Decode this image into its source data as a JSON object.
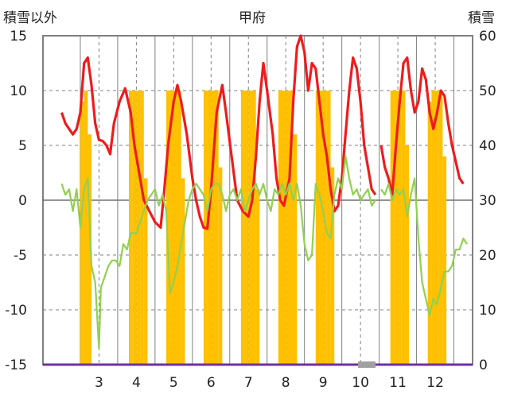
{
  "chart_data": {
    "type": "bar+line",
    "title": "甲府",
    "left_axis_label": "積雪以外",
    "right_axis_label": "積雪",
    "x_ticks": [
      "3",
      "4",
      "5",
      "6",
      "7",
      "8",
      "9",
      "10",
      "11",
      "12"
    ],
    "y_left": {
      "ticks": [
        "15",
        "10",
        "5",
        "0",
        "-5",
        "-10",
        "-15"
      ],
      "range": [
        -15,
        15
      ]
    },
    "y_right": {
      "ticks": [
        "60",
        "50",
        "40",
        "30",
        "20",
        "10",
        "0"
      ],
      "range": [
        0,
        60
      ]
    },
    "grid": "dashed",
    "colors": {
      "red": "#ee1c1c",
      "green": "#92d050",
      "snow_bars": "#ffc000",
      "baseline": "#7030a0"
    },
    "series": [
      {
        "axis": "right",
        "style": "bars",
        "color": "#ffc000",
        "points": [
          [
            2.55,
            48
          ],
          [
            2.65,
            50
          ],
          [
            2.75,
            42
          ],
          [
            3.85,
            50
          ],
          [
            3.95,
            50
          ],
          [
            4.05,
            50
          ],
          [
            4.15,
            50
          ],
          [
            4.25,
            34
          ],
          [
            4.85,
            50
          ],
          [
            4.95,
            50
          ],
          [
            5.05,
            50
          ],
          [
            5.15,
            50
          ],
          [
            5.25,
            34
          ],
          [
            5.85,
            50
          ],
          [
            5.95,
            50
          ],
          [
            6.05,
            50
          ],
          [
            6.15,
            50
          ],
          [
            6.25,
            36
          ],
          [
            6.85,
            50
          ],
          [
            6.95,
            50
          ],
          [
            7.05,
            50
          ],
          [
            7.15,
            50
          ],
          [
            7.25,
            32
          ],
          [
            7.85,
            50
          ],
          [
            7.95,
            50
          ],
          [
            8.05,
            50
          ],
          [
            8.15,
            50
          ],
          [
            8.25,
            42
          ],
          [
            8.85,
            50
          ],
          [
            8.95,
            50
          ],
          [
            9.05,
            50
          ],
          [
            9.15,
            50
          ],
          [
            9.25,
            36
          ],
          [
            10.85,
            50
          ],
          [
            10.95,
            50
          ],
          [
            11.05,
            50
          ],
          [
            11.15,
            50
          ],
          [
            11.25,
            40
          ],
          [
            11.85,
            48
          ],
          [
            11.95,
            50
          ],
          [
            12.05,
            50
          ],
          [
            12.15,
            50
          ],
          [
            12.25,
            38
          ]
        ]
      },
      {
        "axis": "left",
        "style": "line",
        "color": "#ee1c1c",
        "segments": [
          [
            [
              2.0,
              8
            ],
            [
              2.1,
              7
            ],
            [
              2.2,
              6.5
            ],
            [
              2.3,
              6
            ],
            [
              2.4,
              6.5
            ],
            [
              2.5,
              8
            ],
            [
              2.6,
              12.5
            ],
            [
              2.7,
              13
            ],
            [
              2.8,
              10.5
            ],
            [
              2.9,
              7
            ],
            [
              3.0,
              5.5
            ],
            [
              3.1,
              5.4
            ],
            [
              3.2,
              5
            ],
            [
              3.3,
              4.2
            ],
            [
              3.4,
              7
            ],
            [
              3.55,
              9
            ],
            [
              3.7,
              10.2
            ],
            [
              3.85,
              8
            ],
            [
              3.95,
              5
            ],
            [
              4.1,
              2
            ],
            [
              4.2,
              0
            ],
            [
              4.35,
              -1
            ],
            [
              4.5,
              -2
            ],
            [
              4.65,
              -2.5
            ],
            [
              4.75,
              1
            ],
            [
              4.85,
              5
            ],
            [
              5.0,
              9
            ],
            [
              5.1,
              10.5
            ],
            [
              5.2,
              9
            ],
            [
              5.35,
              6
            ],
            [
              5.5,
              2
            ],
            [
              5.6,
              0
            ],
            [
              5.7,
              -1.5
            ],
            [
              5.8,
              -2.5
            ],
            [
              5.9,
              -2.6
            ],
            [
              6.0,
              1
            ],
            [
              6.15,
              8
            ],
            [
              6.3,
              10.5
            ],
            [
              6.4,
              8
            ],
            [
              6.55,
              4
            ],
            [
              6.7,
              0
            ],
            [
              6.85,
              -1
            ],
            [
              7.0,
              -1.5
            ],
            [
              7.1,
              0
            ],
            [
              7.2,
              4
            ],
            [
              7.3,
              9
            ],
            [
              7.4,
              12.5
            ],
            [
              7.5,
              10
            ],
            [
              7.65,
              6
            ],
            [
              7.75,
              2
            ],
            [
              7.85,
              0
            ],
            [
              7.95,
              -0.5
            ],
            [
              8.1,
              2
            ],
            [
              8.2,
              9
            ],
            [
              8.3,
              14
            ],
            [
              8.4,
              15
            ],
            [
              8.5,
              13.5
            ],
            [
              8.6,
              10
            ],
            [
              8.7,
              12.5
            ],
            [
              8.8,
              12
            ],
            [
              8.9,
              9
            ],
            [
              9.0,
              6
            ],
            [
              9.1,
              4
            ],
            [
              9.2,
              1
            ],
            [
              9.3,
              -1
            ],
            [
              9.4,
              -0.5
            ],
            [
              9.5,
              2
            ],
            [
              9.6,
              6
            ],
            [
              9.7,
              10
            ],
            [
              9.8,
              13
            ],
            [
              9.9,
              12
            ],
            [
              10.0,
              9
            ],
            [
              10.1,
              5
            ],
            [
              10.2,
              3
            ],
            [
              10.3,
              1
            ],
            [
              10.4,
              0.5
            ]
          ],
          [
            [
              10.55,
              5
            ],
            [
              10.65,
              3
            ],
            [
              10.75,
              2
            ],
            [
              10.85,
              0.5
            ],
            [
              10.95,
              5
            ],
            [
              11.05,
              9
            ],
            [
              11.15,
              12.5
            ],
            [
              11.25,
              13
            ],
            [
              11.35,
              10
            ],
            [
              11.45,
              8
            ],
            [
              11.55,
              9
            ],
            [
              11.65,
              12
            ],
            [
              11.75,
              11
            ],
            [
              11.85,
              8
            ],
            [
              11.95,
              6.5
            ],
            [
              12.05,
              8
            ],
            [
              12.15,
              10
            ],
            [
              12.25,
              9.5
            ],
            [
              12.35,
              7
            ],
            [
              12.45,
              5
            ],
            [
              12.55,
              3.5
            ],
            [
              12.65,
              2
            ],
            [
              12.75,
              1.5
            ]
          ]
        ]
      },
      {
        "axis": "left",
        "style": "line",
        "color": "#92d050",
        "segments": [
          [
            [
              2.0,
              1.5
            ],
            [
              2.1,
              0.5
            ],
            [
              2.2,
              1
            ],
            [
              2.3,
              -1
            ],
            [
              2.4,
              1
            ],
            [
              2.5,
              -2.5
            ],
            [
              2.6,
              1
            ],
            [
              2.7,
              2
            ],
            [
              2.8,
              -6
            ],
            [
              2.9,
              -7.5
            ],
            [
              3.0,
              -13.5
            ],
            [
              3.05,
              -8
            ],
            [
              3.15,
              -7
            ],
            [
              3.25,
              -6
            ],
            [
              3.35,
              -5.5
            ],
            [
              3.45,
              -5.5
            ],
            [
              3.55,
              -6
            ],
            [
              3.65,
              -4
            ],
            [
              3.75,
              -4.5
            ],
            [
              3.85,
              -3
            ],
            [
              4.0,
              -3
            ],
            [
              4.1,
              -2
            ],
            [
              4.2,
              -1
            ],
            [
              4.3,
              0
            ],
            [
              4.4,
              0.5
            ],
            [
              4.5,
              1
            ],
            [
              4.6,
              -0.5
            ],
            [
              4.7,
              0.5
            ],
            [
              4.8,
              -1
            ],
            [
              4.9,
              -8.5
            ],
            [
              5.0,
              -7.5
            ],
            [
              5.1,
              -6
            ],
            [
              5.2,
              -4
            ],
            [
              5.3,
              -2
            ],
            [
              5.4,
              0
            ],
            [
              5.5,
              1
            ],
            [
              5.6,
              1.5
            ],
            [
              5.7,
              1
            ],
            [
              5.8,
              0.5
            ],
            [
              5.9,
              -1
            ],
            [
              6.0,
              1
            ],
            [
              6.1,
              1.5
            ],
            [
              6.2,
              1.5
            ],
            [
              6.3,
              0.5
            ],
            [
              6.4,
              -1
            ],
            [
              6.5,
              0.5
            ],
            [
              6.6,
              1
            ],
            [
              6.7,
              0
            ],
            [
              6.8,
              1
            ],
            [
              6.9,
              -1
            ],
            [
              7.0,
              0
            ],
            [
              7.1,
              1
            ],
            [
              7.2,
              1.5
            ],
            [
              7.3,
              0.5
            ],
            [
              7.4,
              1.5
            ],
            [
              7.5,
              0
            ],
            [
              7.6,
              -1
            ],
            [
              7.7,
              1
            ],
            [
              7.8,
              0.5
            ],
            [
              7.9,
              1.5
            ],
            [
              8.0,
              0.5
            ],
            [
              8.1,
              1.5
            ],
            [
              8.2,
              0
            ],
            [
              8.3,
              1.5
            ],
            [
              8.4,
              -0.5
            ],
            [
              8.5,
              -4
            ],
            [
              8.6,
              -5.5
            ],
            [
              8.7,
              -5
            ],
            [
              8.8,
              1.5
            ],
            [
              8.9,
              0.5
            ],
            [
              9.0,
              -1
            ],
            [
              9.1,
              -3
            ],
            [
              9.2,
              -3.5
            ],
            [
              9.3,
              0.5
            ],
            [
              9.4,
              2
            ],
            [
              9.5,
              1
            ],
            [
              9.6,
              4
            ],
            [
              9.7,
              2
            ],
            [
              9.8,
              0.5
            ],
            [
              9.9,
              1
            ],
            [
              10.0,
              0
            ],
            [
              10.1,
              0.5
            ],
            [
              10.2,
              1
            ],
            [
              10.3,
              -0.5
            ],
            [
              10.4,
              0
            ]
          ],
          [
            [
              10.55,
              1
            ],
            [
              10.65,
              0.5
            ],
            [
              10.75,
              1.5
            ],
            [
              10.85,
              0
            ],
            [
              10.95,
              1
            ],
            [
              11.05,
              0.5
            ],
            [
              11.15,
              1
            ],
            [
              11.25,
              -1.5
            ],
            [
              11.35,
              0.5
            ],
            [
              11.45,
              2
            ],
            [
              11.55,
              -3.5
            ],
            [
              11.65,
              -7.5
            ],
            [
              11.75,
              -9
            ],
            [
              11.85,
              -10.5
            ],
            [
              11.95,
              -9
            ],
            [
              12.05,
              -9.5
            ],
            [
              12.15,
              -8
            ],
            [
              12.25,
              -6.5
            ],
            [
              12.35,
              -6.5
            ],
            [
              12.45,
              -6
            ],
            [
              12.55,
              -4.5
            ],
            [
              12.65,
              -4.5
            ],
            [
              12.75,
              -3.5
            ],
            [
              12.85,
              -4
            ]
          ]
        ]
      }
    ]
  }
}
